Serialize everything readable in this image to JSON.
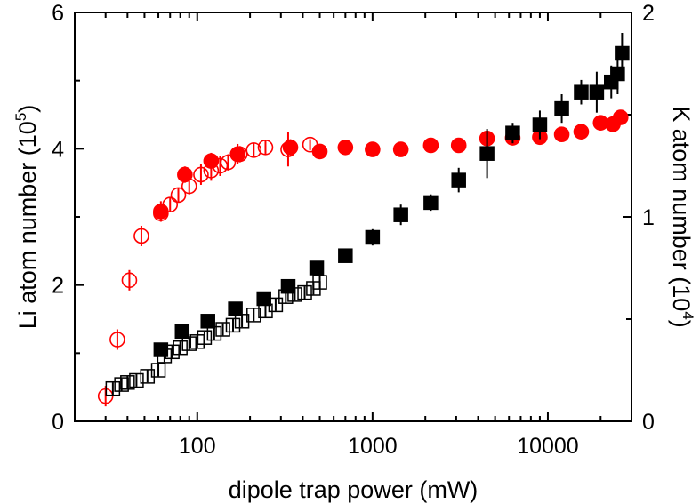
{
  "colors": {
    "li": "#ff0000",
    "k": "#000000"
  },
  "chart_data": {
    "type": "scatter",
    "x_scale": "log",
    "xlim": [
      20,
      30000
    ],
    "ylim_left": [
      0,
      6
    ],
    "ylim_right": [
      0,
      2
    ],
    "xlabel": "dipole trap power (mW)",
    "ylabel_left": {
      "base": "Li atom number (10",
      "exp": "5",
      "close": ")"
    },
    "ylabel_right": {
      "base": "K atom number (10",
      "exp": "4",
      "close": ")"
    },
    "x_ticks": [
      {
        "value": 100,
        "label": "100"
      },
      {
        "value": 1000,
        "label": "1000"
      },
      {
        "value": 10000,
        "label": "10000"
      }
    ],
    "y_ticks_left": [
      {
        "value": 0,
        "label": "0"
      },
      {
        "value": 2,
        "label": "2"
      },
      {
        "value": 4,
        "label": "4"
      },
      {
        "value": 6,
        "label": "6"
      }
    ],
    "y_ticks_right": [
      {
        "value": 0,
        "label": "0"
      },
      {
        "value": 1,
        "label": "1"
      },
      {
        "value": 2,
        "label": "2"
      }
    ],
    "grid": false,
    "series": [
      {
        "axis": "left",
        "marker": "circle",
        "filled": false,
        "color": "#ff0000",
        "points": [
          [
            30,
            0.37,
            0.15
          ],
          [
            35,
            1.2,
            0.15
          ],
          [
            41,
            2.07,
            0.15
          ],
          [
            48,
            2.72,
            0.15
          ],
          [
            62,
            3.05,
            0.12
          ],
          [
            70,
            3.18,
            0.1
          ],
          [
            78,
            3.32,
            0.1
          ],
          [
            90,
            3.45,
            0.12
          ],
          [
            105,
            3.62,
            0.15
          ],
          [
            120,
            3.68,
            0.15
          ],
          [
            135,
            3.75,
            0.15
          ],
          [
            150,
            3.8,
            0.12
          ],
          [
            175,
            3.92,
            0.12
          ],
          [
            210,
            3.98,
            0.1
          ],
          [
            245,
            4.02,
            0.1
          ],
          [
            330,
            3.99,
            0.25
          ],
          [
            440,
            4.06,
            0.08
          ]
        ]
      },
      {
        "axis": "left",
        "marker": "circle",
        "filled": true,
        "color": "#ff0000",
        "points": [
          [
            62,
            3.08,
            0.15
          ],
          [
            85,
            3.62,
            0.12
          ],
          [
            120,
            3.82,
            0.12
          ],
          [
            170,
            3.92,
            0.15
          ],
          [
            340,
            4.02,
            0.12
          ],
          [
            500,
            3.96,
            0.08
          ],
          [
            700,
            4.02,
            0.08
          ],
          [
            1000,
            3.99,
            0.08
          ],
          [
            1450,
            3.99,
            0.08
          ],
          [
            2150,
            4.05,
            0.08
          ],
          [
            3100,
            4.05,
            0.08
          ],
          [
            4500,
            4.15,
            0.1
          ],
          [
            6300,
            4.16,
            0.1
          ],
          [
            9000,
            4.17,
            0.1
          ],
          [
            12000,
            4.21,
            0.1
          ],
          [
            15500,
            4.25,
            0.1
          ],
          [
            20000,
            4.38,
            0.1
          ],
          [
            23500,
            4.36,
            0.1
          ],
          [
            26000,
            4.46,
            0.1
          ]
        ]
      },
      {
        "axis": "right",
        "marker": "square",
        "filled": true,
        "color": "#000000",
        "points": [
          [
            62,
            0.35,
            0.03
          ],
          [
            82,
            0.44,
            0.03
          ],
          [
            115,
            0.49,
            0.03
          ],
          [
            165,
            0.55,
            0.03
          ],
          [
            240,
            0.6,
            0.03
          ],
          [
            330,
            0.66,
            0.03
          ],
          [
            480,
            0.75,
            0.03
          ],
          [
            700,
            0.81,
            0.03
          ],
          [
            1000,
            0.9,
            0.04
          ],
          [
            1450,
            1.01,
            0.05
          ],
          [
            2150,
            1.07,
            0.04
          ],
          [
            3100,
            1.18,
            0.06
          ],
          [
            4500,
            1.31,
            0.12
          ],
          [
            6300,
            1.41,
            0.05
          ],
          [
            9000,
            1.45,
            0.07
          ],
          [
            12000,
            1.53,
            0.07
          ],
          [
            15500,
            1.61,
            0.06
          ],
          [
            19000,
            1.61,
            0.1
          ],
          [
            23000,
            1.66,
            0.08
          ],
          [
            25000,
            1.7,
            0.1
          ],
          [
            26500,
            1.8,
            0.1
          ]
        ]
      },
      {
        "axis": "right",
        "marker": "square",
        "filled": false,
        "color": "#000000",
        "points": [
          [
            33,
            0.16,
            0.03
          ],
          [
            37,
            0.18,
            0.03
          ],
          [
            40,
            0.19,
            0.03
          ],
          [
            45,
            0.2,
            0.03
          ],
          [
            52,
            0.22,
            0.03
          ],
          [
            60,
            0.25,
            0.03
          ],
          [
            65,
            0.32,
            0.03
          ],
          [
            72,
            0.34,
            0.03
          ],
          [
            80,
            0.36,
            0.03
          ],
          [
            90,
            0.38,
            0.03
          ],
          [
            100,
            0.39,
            0.03
          ],
          [
            110,
            0.41,
            0.03
          ],
          [
            125,
            0.43,
            0.03
          ],
          [
            140,
            0.45,
            0.03
          ],
          [
            160,
            0.47,
            0.03
          ],
          [
            180,
            0.49,
            0.03
          ],
          [
            210,
            0.52,
            0.03
          ],
          [
            245,
            0.54,
            0.03
          ],
          [
            280,
            0.57,
            0.03
          ],
          [
            320,
            0.61,
            0.03
          ],
          [
            360,
            0.62,
            0.03
          ],
          [
            410,
            0.63,
            0.03
          ],
          [
            460,
            0.65,
            0.03
          ],
          [
            500,
            0.68,
            0.03
          ]
        ]
      }
    ]
  }
}
